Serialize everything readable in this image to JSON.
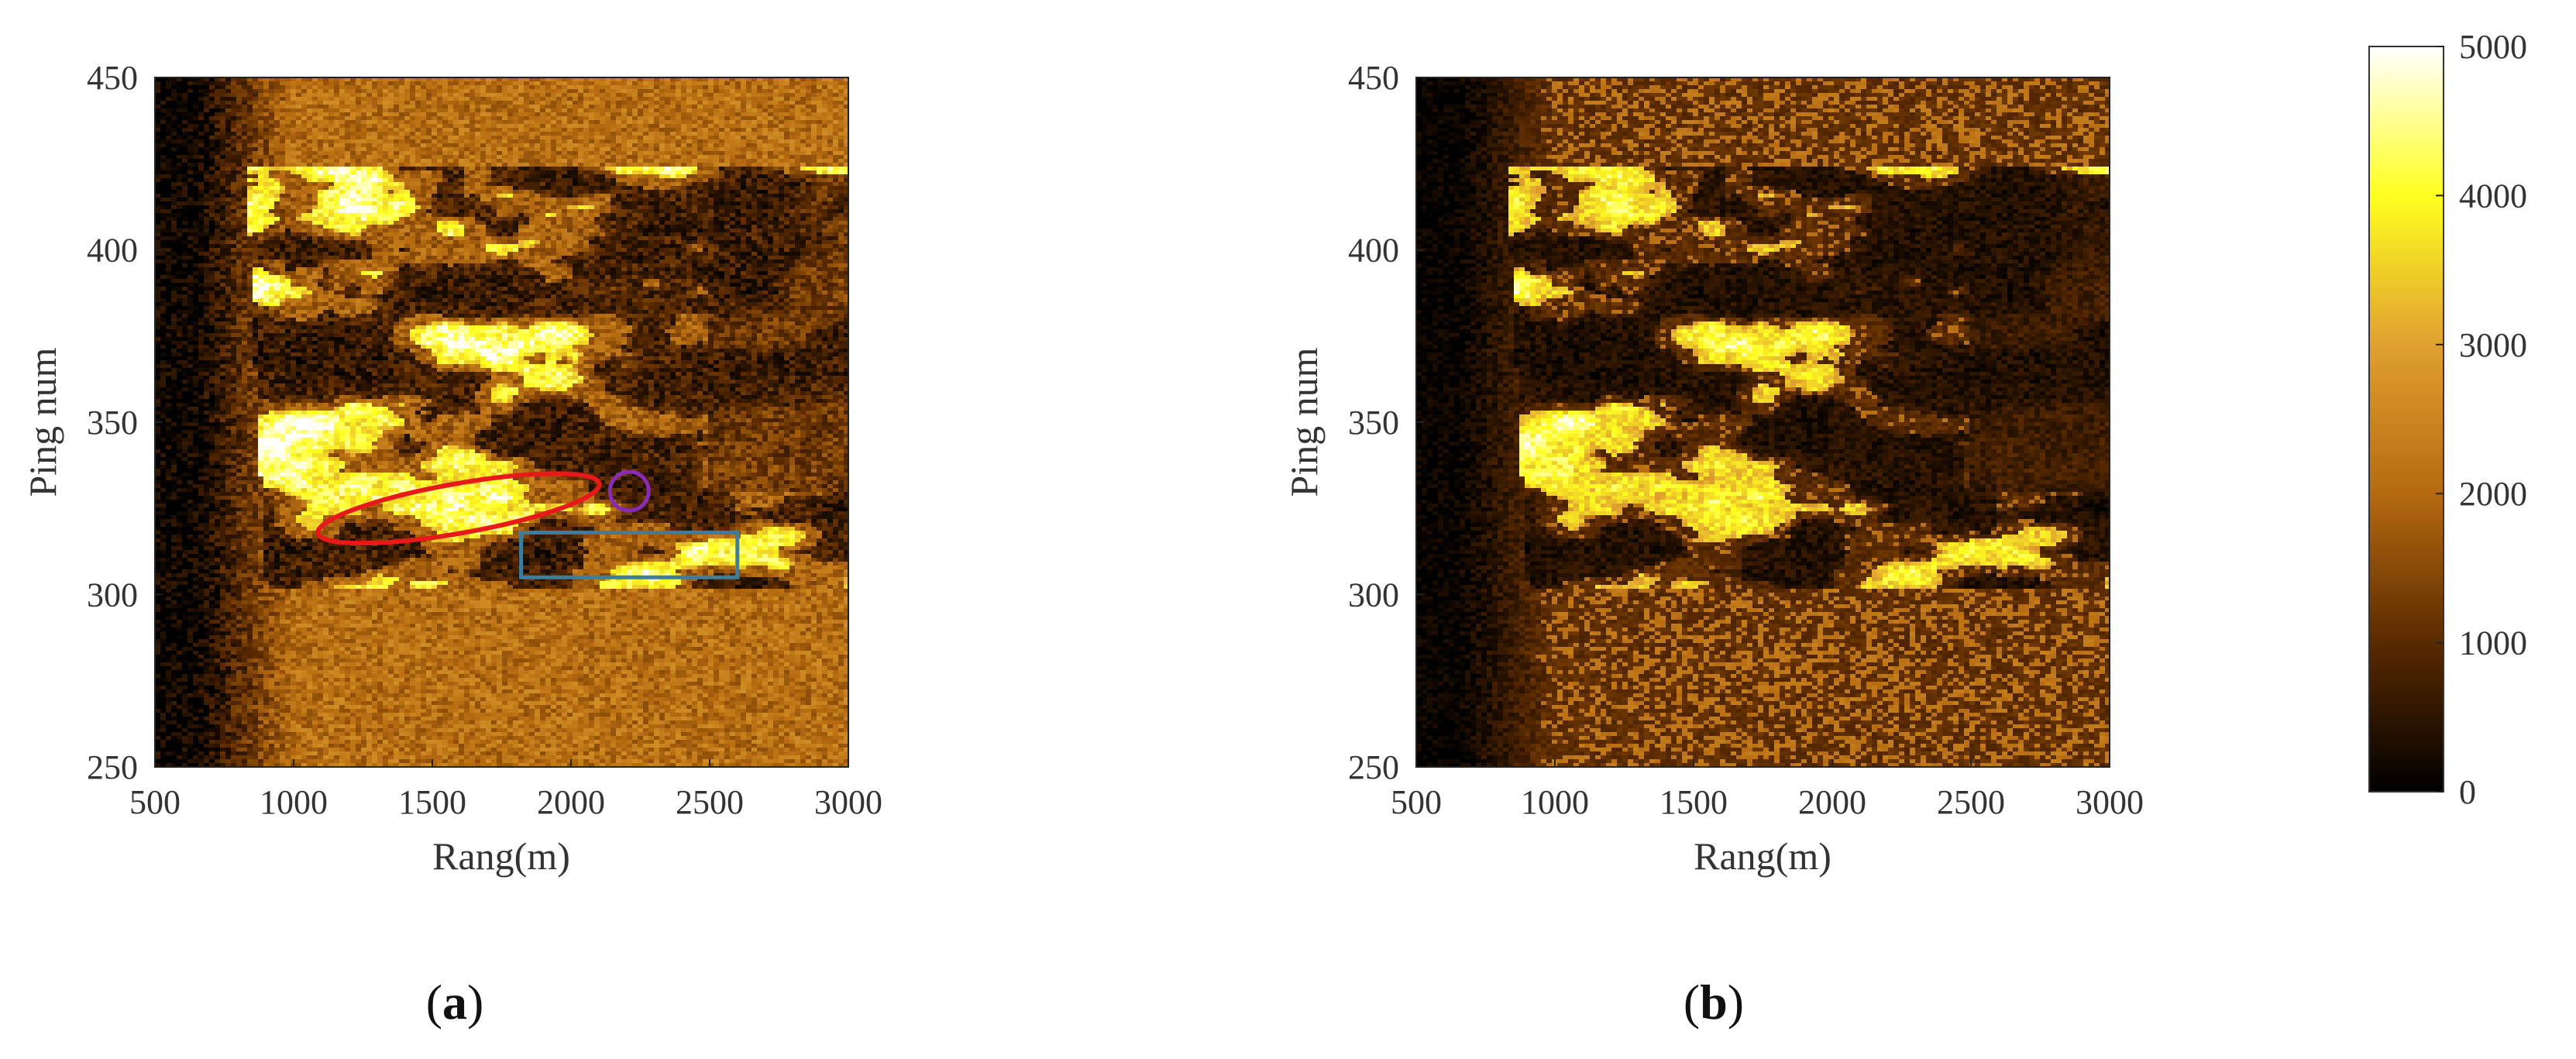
{
  "chart_data": [
    {
      "type": "heatmap",
      "panel_label": "a",
      "xlabel": "Rang(m)",
      "ylabel": "Ping num",
      "xlim": [
        500,
        3000
      ],
      "ylim": [
        250,
        450
      ],
      "xticks": [
        500,
        1000,
        1500,
        2000,
        2500,
        3000
      ],
      "yticks": [
        250,
        300,
        350,
        400,
        450
      ],
      "colormap": "afmhot (black-brown-orange-yellow-white)",
      "annotations": [
        {
          "shape": "ellipse",
          "color": "#e81919",
          "x_range": [
            1080,
            2110
          ],
          "y_range": [
            314,
            336
          ]
        },
        {
          "shape": "circle",
          "color": "#8a2bb5",
          "x_center": 2210,
          "y_center": 330
        },
        {
          "shape": "rectangle",
          "color": "#3f7d9c",
          "x_range": [
            1820,
            2600
          ],
          "y_range": [
            305,
            318
          ]
        }
      ]
    },
    {
      "type": "heatmap",
      "panel_label": "b",
      "xlabel": "Rang(m)",
      "ylabel": "Ping num",
      "xlim": [
        500,
        3000
      ],
      "ylim": [
        250,
        450
      ],
      "xticks": [
        500,
        1000,
        1500,
        2000,
        2500,
        3000
      ],
      "yticks": [
        250,
        300,
        350,
        400,
        450
      ],
      "colormap": "afmhot (black-brown-orange-yellow-white)"
    }
  ],
  "colorbar": {
    "min": 0,
    "max": 5000,
    "ticks": [
      0,
      1000,
      2000,
      3000,
      4000,
      5000
    ],
    "colors": [
      "#000000",
      "#5a2a00",
      "#b56a10",
      "#e0a030",
      "#ffff20",
      "#ffffff"
    ]
  },
  "text": {
    "a_label_open": "(",
    "a_label_letter": "a",
    "a_label_close": ")",
    "b_label_open": "(",
    "b_label_letter": "b",
    "b_label_close": ")"
  }
}
